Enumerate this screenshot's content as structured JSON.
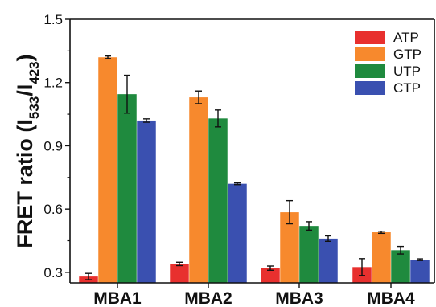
{
  "chart_data": {
    "type": "bar",
    "categories": [
      "MBA1",
      "MBA2",
      "MBA3",
      "MBA4"
    ],
    "series": [
      {
        "name": "ATP",
        "color": "#e8302e",
        "values": [
          0.28,
          0.34,
          0.32,
          0.325
        ],
        "errors": [
          0.015,
          0.008,
          0.01,
          0.04
        ]
      },
      {
        "name": "GTP",
        "color": "#f7892d",
        "values": [
          1.32,
          1.13,
          0.585,
          0.49
        ],
        "errors": [
          0.006,
          0.03,
          0.055,
          0.005
        ]
      },
      {
        "name": "UTP",
        "color": "#1f8a3e",
        "values": [
          1.145,
          1.03,
          0.52,
          0.405
        ],
        "errors": [
          0.09,
          0.04,
          0.02,
          0.018
        ]
      },
      {
        "name": "CTP",
        "color": "#3a50b0",
        "values": [
          1.02,
          0.72,
          0.46,
          0.36
        ],
        "errors": [
          0.008,
          0.004,
          0.013,
          0.004
        ]
      }
    ],
    "ylim": [
      0.25,
      1.5
    ],
    "yticks": [
      "0.3",
      "0.6",
      "0.9",
      "1.2",
      "1.5"
    ],
    "ylabel": {
      "main": "FRET ratio (I",
      "sub1": "533",
      "mid": "/I",
      "sub2": "423",
      "end": ")"
    },
    "xlabel": "",
    "legend_position": "top-right",
    "grid": false
  }
}
